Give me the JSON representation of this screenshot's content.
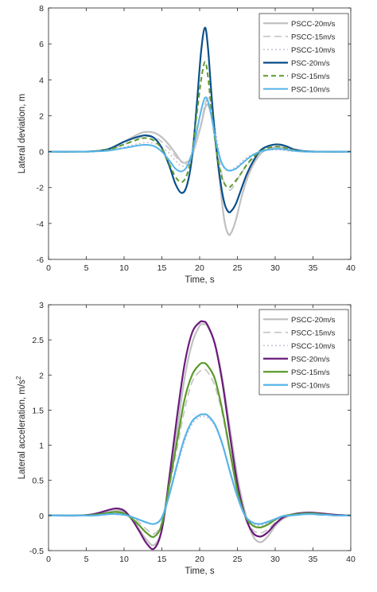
{
  "chart_data": [
    {
      "type": "line",
      "title": "",
      "xlabel": "Time, s",
      "ylabel": "Lateral deviation, m",
      "xlim": [
        0,
        40
      ],
      "ylim": [
        -6,
        8
      ],
      "xticks": [
        "0",
        "5",
        "10",
        "15",
        "20",
        "25",
        "30",
        "35",
        "40"
      ],
      "yticks": [
        "-6",
        "-4",
        "-2",
        "0",
        "2",
        "4",
        "6",
        "8"
      ],
      "grid": false,
      "legend_position": "top-right",
      "series": [
        {
          "name": "PSCC-20m/s",
          "color": "#c0c0c0",
          "dash": "solid",
          "width": 2.2,
          "x": [
            0,
            4,
            6,
            8,
            10,
            12,
            13,
            14,
            15,
            16,
            16.8,
            17.6,
            18.3,
            19,
            19.6,
            20.2,
            20.7,
            21.1,
            21.6,
            22.2,
            22.8,
            23.3,
            23.8,
            24.2,
            24.8,
            25.5,
            26.2,
            27,
            28,
            29,
            30,
            30.8,
            31.6,
            32.5,
            34,
            36,
            40
          ],
          "y": [
            0,
            0,
            0.02,
            0.15,
            0.55,
            1.0,
            1.1,
            1.05,
            0.8,
            0.35,
            -0.1,
            -0.55,
            -0.6,
            -0.2,
            0.6,
            1.5,
            2.4,
            2.6,
            1.9,
            0.2,
            -2.2,
            -3.9,
            -4.6,
            -4.5,
            -3.8,
            -2.6,
            -1.6,
            -0.8,
            -0.15,
            0.15,
            0.25,
            0.25,
            0.15,
            0.05,
            0,
            0,
            0
          ]
        },
        {
          "name": "PSCC-15m/s",
          "color": "#c8c8c8",
          "dash": "long-dash",
          "width": 1.8,
          "x": [
            0,
            4,
            6,
            8,
            10,
            12,
            13,
            14,
            15,
            16,
            16.8,
            17.6,
            18.3,
            19,
            19.6,
            20.2,
            20.7,
            21.1,
            21.6,
            22.2,
            22.8,
            23.3,
            23.8,
            24.2,
            24.8,
            25.5,
            26.2,
            27,
            28,
            29,
            30,
            30.8,
            31.6,
            32.5,
            34,
            36,
            40
          ],
          "y": [
            0,
            0,
            0.02,
            0.1,
            0.4,
            0.75,
            0.85,
            0.8,
            0.55,
            0.15,
            -0.25,
            -0.6,
            -0.55,
            -0.1,
            0.7,
            1.6,
            2.6,
            2.9,
            2.3,
            0.6,
            -1.0,
            -1.8,
            -2.1,
            -2.1,
            -1.7,
            -1.2,
            -0.8,
            -0.4,
            -0.05,
            0.15,
            0.2,
            0.2,
            0.1,
            0.03,
            0,
            0,
            0
          ]
        },
        {
          "name": "PSCC-10m/s",
          "color": "#c4c0d8",
          "dash": "dot",
          "width": 1.6,
          "x": [
            0,
            4,
            6,
            8,
            10,
            12,
            13,
            14,
            15,
            16,
            16.8,
            17.6,
            18.3,
            19,
            19.6,
            20.2,
            20.7,
            21.1,
            21.6,
            22.2,
            22.8,
            23.3,
            23.8,
            24.2,
            24.8,
            25.5,
            26.2,
            27,
            28,
            29,
            30,
            30.8,
            31.6,
            32.5,
            34,
            36,
            40
          ],
          "y": [
            0,
            0,
            0.01,
            0.06,
            0.25,
            0.45,
            0.5,
            0.45,
            0.25,
            -0.1,
            -0.5,
            -0.8,
            -0.7,
            -0.2,
            0.6,
            1.6,
            2.6,
            3.0,
            2.5,
            0.9,
            -0.5,
            -0.95,
            -1.05,
            -1.0,
            -0.85,
            -0.6,
            -0.35,
            -0.15,
            0.0,
            0.1,
            0.1,
            0.1,
            0.05,
            0.02,
            0,
            0,
            0
          ]
        },
        {
          "name": "PSC-20m/s",
          "color": "#0b4f8a",
          "dash": "solid",
          "width": 2.2,
          "x": [
            0,
            4,
            6,
            8,
            10,
            12,
            13,
            14,
            15,
            16,
            16.8,
            17.6,
            18.3,
            19,
            19.6,
            20.2,
            20.7,
            21.1,
            21.6,
            22.2,
            22.8,
            23.3,
            23.8,
            24.2,
            24.8,
            25.5,
            26.2,
            27,
            28,
            29,
            30,
            30.8,
            31.6,
            32.5,
            34,
            36,
            40
          ],
          "y": [
            0,
            0,
            0.02,
            0.15,
            0.55,
            0.85,
            0.9,
            0.75,
            0.2,
            -0.8,
            -1.8,
            -2.3,
            -1.9,
            -0.3,
            2.5,
            5.6,
            6.9,
            5.8,
            3.0,
            0.2,
            -1.8,
            -2.9,
            -3.35,
            -3.3,
            -2.9,
            -2.1,
            -1.3,
            -0.6,
            0.05,
            0.3,
            0.4,
            0.38,
            0.28,
            0.12,
            0.02,
            0,
            0
          ]
        },
        {
          "name": "PSC-15m/s",
          "color": "#5b9a2c",
          "dash": "dash",
          "width": 2.0,
          "x": [
            0,
            4,
            6,
            8,
            10,
            12,
            13,
            14,
            15,
            16,
            16.8,
            17.6,
            18.3,
            19,
            19.6,
            20.2,
            20.7,
            21.1,
            21.6,
            22.2,
            22.8,
            23.3,
            23.8,
            24.2,
            24.8,
            25.5,
            26.2,
            27,
            28,
            29,
            30,
            30.8,
            31.6,
            32.5,
            34,
            36,
            40
          ],
          "y": [
            0,
            0,
            0.02,
            0.12,
            0.4,
            0.7,
            0.75,
            0.6,
            0.15,
            -0.7,
            -1.4,
            -1.7,
            -1.3,
            -0.1,
            2.0,
            4.0,
            5.0,
            4.2,
            2.2,
            0.1,
            -1.2,
            -1.8,
            -2.0,
            -1.9,
            -1.6,
            -1.2,
            -0.75,
            -0.35,
            0.0,
            0.2,
            0.28,
            0.26,
            0.18,
            0.08,
            0.01,
            0,
            0
          ]
        },
        {
          "name": "PSC-10m/s",
          "color": "#56b4e9",
          "dash": "solid",
          "width": 2.0,
          "x": [
            0,
            4,
            6,
            8,
            10,
            12,
            13,
            14,
            15,
            16,
            16.8,
            17.6,
            18.3,
            19,
            19.6,
            20.2,
            20.7,
            21.1,
            21.6,
            22.2,
            22.8,
            23.3,
            23.8,
            24.2,
            24.8,
            25.5,
            26.2,
            27,
            28,
            29,
            30,
            30.8,
            31.6,
            32.5,
            34,
            36,
            40
          ],
          "y": [
            0,
            0,
            0.01,
            0.06,
            0.2,
            0.35,
            0.38,
            0.3,
            0.0,
            -0.5,
            -0.95,
            -1.1,
            -0.85,
            -0.1,
            1.1,
            2.3,
            3.0,
            2.8,
            1.9,
            0.5,
            -0.5,
            -0.9,
            -1.05,
            -1.05,
            -0.95,
            -0.7,
            -0.45,
            -0.2,
            0.0,
            0.1,
            0.15,
            0.14,
            0.1,
            0.05,
            0,
            0,
            0
          ]
        }
      ]
    },
    {
      "type": "line",
      "title": "",
      "xlabel": "Time, s",
      "ylabel": "Lateral acceleration, m/s",
      "ylabel_superscript": "2",
      "xlim": [
        0,
        40
      ],
      "ylim": [
        -0.5,
        3
      ],
      "xticks": [
        "0",
        "5",
        "10",
        "15",
        "20",
        "25",
        "30",
        "35",
        "40"
      ],
      "yticks": [
        "-0.5",
        "0",
        "0.5",
        "1",
        "1.5",
        "2",
        "2.5",
        "3"
      ],
      "grid": false,
      "legend_position": "top-right",
      "series": [
        {
          "name": "PSCC-20m/s",
          "color": "#c0c0c0",
          "dash": "solid",
          "width": 2.2,
          "x": [
            0,
            4,
            6,
            8,
            9,
            10,
            11,
            12,
            13,
            14,
            15,
            16,
            17,
            18,
            19,
            20,
            20.5,
            21,
            22,
            23,
            24,
            25,
            26,
            27,
            28,
            29,
            30,
            31,
            32,
            33,
            34,
            35,
            36,
            37,
            38,
            40
          ],
          "y": [
            0,
            0,
            0.01,
            0.05,
            0.07,
            0.05,
            -0.05,
            -0.2,
            -0.35,
            -0.42,
            -0.2,
            0.45,
            1.2,
            1.95,
            2.45,
            2.7,
            2.72,
            2.7,
            2.45,
            1.95,
            1.25,
            0.55,
            0.05,
            -0.28,
            -0.38,
            -0.3,
            -0.15,
            -0.05,
            0.0,
            0.03,
            0.04,
            0.04,
            0.03,
            0.02,
            0.01,
            0
          ]
        },
        {
          "name": "PSCC-15m/s",
          "color": "#c8c8c8",
          "dash": "long-dash",
          "width": 1.8,
          "x": [
            0,
            4,
            6,
            8,
            9,
            10,
            11,
            12,
            13,
            14,
            15,
            16,
            17,
            18,
            19,
            20,
            20.5,
            21,
            22,
            23,
            24,
            25,
            26,
            27,
            28,
            29,
            30,
            31,
            32,
            33,
            34,
            35,
            36,
            37,
            38,
            40
          ],
          "y": [
            0,
            0,
            0.01,
            0.03,
            0.04,
            0.03,
            -0.02,
            -0.1,
            -0.2,
            -0.26,
            -0.1,
            0.4,
            0.95,
            1.5,
            1.9,
            2.05,
            2.08,
            2.05,
            1.85,
            1.45,
            0.9,
            0.38,
            0.0,
            -0.2,
            -0.25,
            -0.2,
            -0.1,
            -0.03,
            0.0,
            0.02,
            0.03,
            0.03,
            0.02,
            0.01,
            0,
            0
          ]
        },
        {
          "name": "PSCC-10m/s",
          "color": "#c4c0d8",
          "dash": "dot",
          "width": 1.6,
          "x": [
            0,
            4,
            6,
            8,
            9,
            10,
            11,
            12,
            13,
            14,
            15,
            16,
            17,
            18,
            19,
            20,
            20.5,
            21,
            22,
            23,
            24,
            25,
            26,
            27,
            28,
            29,
            30,
            31,
            32,
            33,
            34,
            35,
            36,
            37,
            38,
            40
          ],
          "y": [
            0,
            0,
            0.0,
            0.02,
            0.02,
            0.01,
            -0.02,
            -0.06,
            -0.1,
            -0.12,
            -0.04,
            0.28,
            0.68,
            1.05,
            1.3,
            1.4,
            1.41,
            1.4,
            1.28,
            1.0,
            0.62,
            0.26,
            0.0,
            -0.12,
            -0.14,
            -0.11,
            -0.06,
            -0.02,
            0.0,
            0.01,
            0.02,
            0.02,
            0.01,
            0.01,
            0,
            0
          ]
        },
        {
          "name": "PSC-20m/s",
          "color": "#6a1b7a",
          "dash": "solid",
          "width": 2.2,
          "x": [
            0,
            4,
            6,
            8,
            9,
            10,
            11,
            12,
            13,
            14,
            15,
            16,
            17,
            18,
            19,
            20,
            20.5,
            21,
            22,
            23,
            24,
            25,
            26,
            27,
            28,
            29,
            30,
            31,
            32,
            33,
            34,
            35,
            36,
            37,
            38,
            40
          ],
          "y": [
            0,
            0,
            0.02,
            0.08,
            0.1,
            0.07,
            -0.05,
            -0.22,
            -0.4,
            -0.47,
            -0.2,
            0.55,
            1.4,
            2.15,
            2.6,
            2.75,
            2.76,
            2.72,
            2.45,
            1.9,
            1.15,
            0.45,
            0.0,
            -0.24,
            -0.3,
            -0.24,
            -0.12,
            -0.03,
            0.01,
            0.03,
            0.04,
            0.04,
            0.03,
            0.02,
            0.01,
            0
          ]
        },
        {
          "name": "PSC-15m/s",
          "color": "#5b9a2c",
          "dash": "solid",
          "width": 2.2,
          "x": [
            0,
            4,
            6,
            8,
            9,
            10,
            11,
            12,
            13,
            14,
            15,
            16,
            17,
            18,
            19,
            20,
            20.5,
            21,
            22,
            23,
            24,
            25,
            26,
            27,
            28,
            29,
            30,
            31,
            32,
            33,
            34,
            35,
            36,
            37,
            38,
            40
          ],
          "y": [
            0,
            0,
            0.01,
            0.04,
            0.05,
            0.03,
            -0.04,
            -0.14,
            -0.25,
            -0.3,
            -0.12,
            0.45,
            1.05,
            1.65,
            2.0,
            2.15,
            2.17,
            2.14,
            1.95,
            1.5,
            0.92,
            0.35,
            0.0,
            -0.14,
            -0.17,
            -0.13,
            -0.06,
            -0.01,
            0.01,
            0.02,
            0.03,
            0.03,
            0.02,
            0.01,
            0,
            0
          ]
        },
        {
          "name": "PSC-10m/s",
          "color": "#56b4e9",
          "dash": "solid",
          "width": 2.2,
          "x": [
            0,
            4,
            6,
            8,
            9,
            10,
            11,
            12,
            13,
            14,
            15,
            16,
            17,
            18,
            19,
            20,
            20.5,
            21,
            22,
            23,
            24,
            25,
            26,
            27,
            28,
            29,
            30,
            31,
            32,
            33,
            34,
            35,
            36,
            37,
            38,
            40
          ],
          "y": [
            0,
            0,
            0.0,
            0.02,
            0.02,
            0.01,
            -0.02,
            -0.06,
            -0.1,
            -0.12,
            -0.03,
            0.3,
            0.72,
            1.1,
            1.34,
            1.43,
            1.44,
            1.43,
            1.3,
            1.02,
            0.63,
            0.27,
            0.0,
            -0.1,
            -0.12,
            -0.09,
            -0.05,
            -0.01,
            0.0,
            0.01,
            0.02,
            0.02,
            0.01,
            0.01,
            0,
            0
          ]
        }
      ]
    }
  ]
}
